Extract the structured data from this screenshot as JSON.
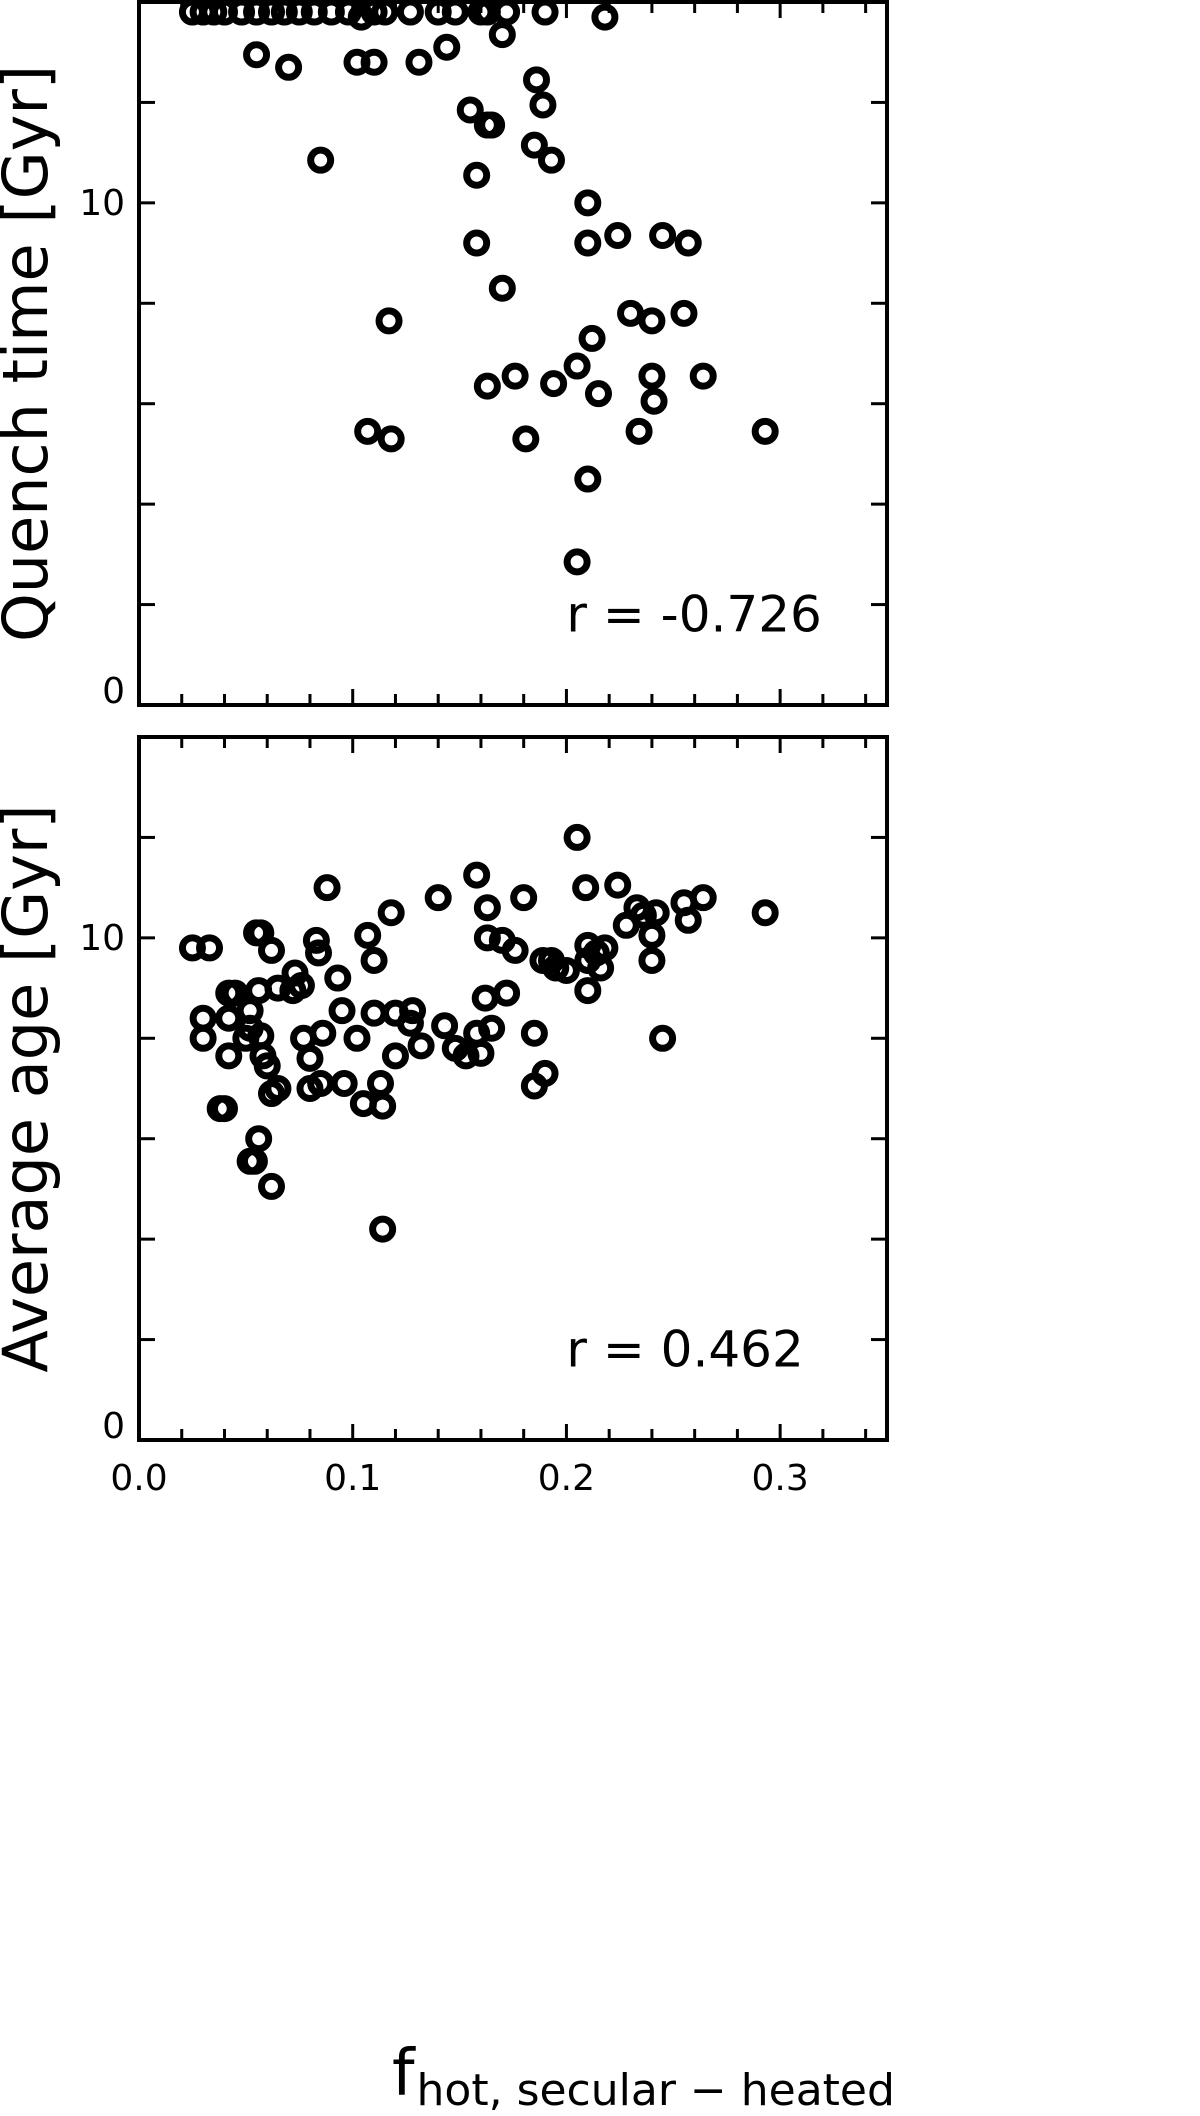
{
  "chart_data": [
    {
      "type": "scatter",
      "ylabel": "Quench time [Gyr]",
      "xlim": [
        0,
        0.35
      ],
      "ylim": [
        0,
        14
      ],
      "y_ticklabels": [
        {
          "value": 0,
          "label": "0"
        },
        {
          "value": 10,
          "label": "10"
        }
      ],
      "y_minor_ticks": [
        2,
        4,
        6,
        8,
        12
      ],
      "x_ticks": [
        0.0,
        0.02,
        0.04,
        0.06,
        0.08,
        0.1,
        0.12,
        0.14,
        0.16,
        0.18,
        0.2,
        0.22,
        0.24,
        0.26,
        0.28,
        0.3,
        0.32,
        0.34
      ],
      "annotation": {
        "text": "r = -0.726",
        "x": 0.2,
        "y": 1.8
      },
      "points": [
        {
          "x": 0.025,
          "y": 13.8
        },
        {
          "x": 0.03,
          "y": 13.8
        },
        {
          "x": 0.035,
          "y": 13.8
        },
        {
          "x": 0.04,
          "y": 13.8
        },
        {
          "x": 0.048,
          "y": 13.8
        },
        {
          "x": 0.055,
          "y": 13.8
        },
        {
          "x": 0.062,
          "y": 13.8
        },
        {
          "x": 0.068,
          "y": 13.8
        },
        {
          "x": 0.075,
          "y": 13.8
        },
        {
          "x": 0.082,
          "y": 13.8
        },
        {
          "x": 0.09,
          "y": 13.8
        },
        {
          "x": 0.098,
          "y": 13.8
        },
        {
          "x": 0.104,
          "y": 13.7
        },
        {
          "x": 0.11,
          "y": 13.8
        },
        {
          "x": 0.115,
          "y": 13.8
        },
        {
          "x": 0.127,
          "y": 13.8
        },
        {
          "x": 0.14,
          "y": 13.8
        },
        {
          "x": 0.148,
          "y": 13.8
        },
        {
          "x": 0.16,
          "y": 13.8
        },
        {
          "x": 0.163,
          "y": 13.8
        },
        {
          "x": 0.172,
          "y": 13.8
        },
        {
          "x": 0.19,
          "y": 13.8
        },
        {
          "x": 0.218,
          "y": 13.7
        },
        {
          "x": 0.17,
          "y": 13.35
        },
        {
          "x": 0.055,
          "y": 12.95
        },
        {
          "x": 0.07,
          "y": 12.7
        },
        {
          "x": 0.102,
          "y": 12.8
        },
        {
          "x": 0.11,
          "y": 12.8
        },
        {
          "x": 0.131,
          "y": 12.8
        },
        {
          "x": 0.144,
          "y": 13.1
        },
        {
          "x": 0.186,
          "y": 12.45
        },
        {
          "x": 0.189,
          "y": 11.95
        },
        {
          "x": 0.155,
          "y": 11.85
        },
        {
          "x": 0.163,
          "y": 11.55
        },
        {
          "x": 0.165,
          "y": 11.55
        },
        {
          "x": 0.185,
          "y": 11.15
        },
        {
          "x": 0.193,
          "y": 10.85
        },
        {
          "x": 0.085,
          "y": 10.85
        },
        {
          "x": 0.158,
          "y": 10.55
        },
        {
          "x": 0.21,
          "y": 10.0
        },
        {
          "x": 0.158,
          "y": 9.2
        },
        {
          "x": 0.21,
          "y": 9.2
        },
        {
          "x": 0.224,
          "y": 9.35
        },
        {
          "x": 0.245,
          "y": 9.35
        },
        {
          "x": 0.257,
          "y": 9.2
        },
        {
          "x": 0.17,
          "y": 8.3
        },
        {
          "x": 0.117,
          "y": 7.65
        },
        {
          "x": 0.23,
          "y": 7.8
        },
        {
          "x": 0.24,
          "y": 7.65
        },
        {
          "x": 0.255,
          "y": 7.8
        },
        {
          "x": 0.212,
          "y": 7.3
        },
        {
          "x": 0.205,
          "y": 6.75
        },
        {
          "x": 0.24,
          "y": 6.55
        },
        {
          "x": 0.264,
          "y": 6.55
        },
        {
          "x": 0.176,
          "y": 6.55
        },
        {
          "x": 0.163,
          "y": 6.35
        },
        {
          "x": 0.194,
          "y": 6.4
        },
        {
          "x": 0.215,
          "y": 6.2
        },
        {
          "x": 0.241,
          "y": 6.05
        },
        {
          "x": 0.107,
          "y": 5.45
        },
        {
          "x": 0.118,
          "y": 5.3
        },
        {
          "x": 0.181,
          "y": 5.3
        },
        {
          "x": 0.234,
          "y": 5.45
        },
        {
          "x": 0.293,
          "y": 5.45
        },
        {
          "x": 0.21,
          "y": 4.5
        },
        {
          "x": 0.205,
          "y": 2.85
        }
      ]
    },
    {
      "type": "scatter",
      "xlabel_main": "f",
      "xlabel_sub": "hot, secular − heated",
      "ylabel": "Average age [Gyr]",
      "xlim": [
        0,
        0.35
      ],
      "ylim": [
        0,
        14
      ],
      "x_ticklabels": [
        {
          "value": 0.0,
          "label": "0.0"
        },
        {
          "value": 0.1,
          "label": "0.1"
        },
        {
          "value": 0.2,
          "label": "0.2"
        },
        {
          "value": 0.3,
          "label": "0.3"
        }
      ],
      "y_ticklabels": [
        {
          "value": 0,
          "label": "0"
        },
        {
          "value": 10,
          "label": "10"
        }
      ],
      "y_minor_ticks": [
        2,
        4,
        6,
        8,
        12
      ],
      "x_ticks": [
        0.0,
        0.02,
        0.04,
        0.06,
        0.08,
        0.1,
        0.12,
        0.14,
        0.16,
        0.18,
        0.2,
        0.22,
        0.24,
        0.26,
        0.28,
        0.3,
        0.32,
        0.34
      ],
      "annotation": {
        "text": "r = 0.462",
        "x": 0.2,
        "y": 1.8
      },
      "points": [
        {
          "x": 0.025,
          "y": 9.8
        },
        {
          "x": 0.033,
          "y": 9.8
        },
        {
          "x": 0.03,
          "y": 8.4
        },
        {
          "x": 0.03,
          "y": 8.0
        },
        {
          "x": 0.042,
          "y": 8.4
        },
        {
          "x": 0.042,
          "y": 8.9
        },
        {
          "x": 0.045,
          "y": 8.9
        },
        {
          "x": 0.042,
          "y": 7.65
        },
        {
          "x": 0.052,
          "y": 8.55
        },
        {
          "x": 0.052,
          "y": 8.2
        },
        {
          "x": 0.05,
          "y": 8.0
        },
        {
          "x": 0.056,
          "y": 8.95
        },
        {
          "x": 0.057,
          "y": 8.05
        },
        {
          "x": 0.058,
          "y": 7.65
        },
        {
          "x": 0.055,
          "y": 10.1
        },
        {
          "x": 0.057,
          "y": 10.1
        },
        {
          "x": 0.062,
          "y": 9.75
        },
        {
          "x": 0.06,
          "y": 7.45
        },
        {
          "x": 0.065,
          "y": 9.0
        },
        {
          "x": 0.072,
          "y": 8.95
        },
        {
          "x": 0.073,
          "y": 9.3
        },
        {
          "x": 0.076,
          "y": 9.05
        },
        {
          "x": 0.077,
          "y": 8.0
        },
        {
          "x": 0.08,
          "y": 7.6
        },
        {
          "x": 0.083,
          "y": 9.95
        },
        {
          "x": 0.084,
          "y": 9.7
        },
        {
          "x": 0.086,
          "y": 8.1
        },
        {
          "x": 0.088,
          "y": 11.0
        },
        {
          "x": 0.085,
          "y": 7.1
        },
        {
          "x": 0.08,
          "y": 7.0
        },
        {
          "x": 0.062,
          "y": 6.9
        },
        {
          "x": 0.065,
          "y": 7.0
        },
        {
          "x": 0.038,
          "y": 6.6
        },
        {
          "x": 0.04,
          "y": 6.6
        },
        {
          "x": 0.056,
          "y": 6.0
        },
        {
          "x": 0.052,
          "y": 5.55
        },
        {
          "x": 0.054,
          "y": 5.55
        },
        {
          "x": 0.062,
          "y": 5.05
        },
        {
          "x": 0.093,
          "y": 9.2
        },
        {
          "x": 0.095,
          "y": 8.55
        },
        {
          "x": 0.096,
          "y": 7.1
        },
        {
          "x": 0.102,
          "y": 8.0
        },
        {
          "x": 0.105,
          "y": 6.7
        },
        {
          "x": 0.107,
          "y": 10.05
        },
        {
          "x": 0.11,
          "y": 9.55
        },
        {
          "x": 0.11,
          "y": 8.5
        },
        {
          "x": 0.113,
          "y": 7.1
        },
        {
          "x": 0.114,
          "y": 6.65
        },
        {
          "x": 0.118,
          "y": 10.5
        },
        {
          "x": 0.12,
          "y": 8.5
        },
        {
          "x": 0.12,
          "y": 7.65
        },
        {
          "x": 0.127,
          "y": 8.3
        },
        {
          "x": 0.128,
          "y": 8.55
        },
        {
          "x": 0.132,
          "y": 7.85
        },
        {
          "x": 0.114,
          "y": 4.2
        },
        {
          "x": 0.14,
          "y": 10.8
        },
        {
          "x": 0.143,
          "y": 8.25
        },
        {
          "x": 0.148,
          "y": 7.8
        },
        {
          "x": 0.153,
          "y": 7.65
        },
        {
          "x": 0.158,
          "y": 11.25
        },
        {
          "x": 0.158,
          "y": 8.1
        },
        {
          "x": 0.16,
          "y": 7.7
        },
        {
          "x": 0.162,
          "y": 8.8
        },
        {
          "x": 0.163,
          "y": 10.6
        },
        {
          "x": 0.163,
          "y": 10.0
        },
        {
          "x": 0.165,
          "y": 8.2
        },
        {
          "x": 0.17,
          "y": 9.95
        },
        {
          "x": 0.172,
          "y": 8.9
        },
        {
          "x": 0.176,
          "y": 9.75
        },
        {
          "x": 0.18,
          "y": 10.8
        },
        {
          "x": 0.185,
          "y": 8.1
        },
        {
          "x": 0.185,
          "y": 7.05
        },
        {
          "x": 0.189,
          "y": 9.55
        },
        {
          "x": 0.19,
          "y": 7.3
        },
        {
          "x": 0.193,
          "y": 9.55
        },
        {
          "x": 0.195,
          "y": 9.4
        },
        {
          "x": 0.2,
          "y": 9.35
        },
        {
          "x": 0.205,
          "y": 12.0
        },
        {
          "x": 0.209,
          "y": 11.0
        },
        {
          "x": 0.21,
          "y": 9.85
        },
        {
          "x": 0.21,
          "y": 9.55
        },
        {
          "x": 0.21,
          "y": 8.95
        },
        {
          "x": 0.214,
          "y": 9.7
        },
        {
          "x": 0.216,
          "y": 9.4
        },
        {
          "x": 0.218,
          "y": 9.8
        },
        {
          "x": 0.224,
          "y": 11.05
        },
        {
          "x": 0.228,
          "y": 10.25
        },
        {
          "x": 0.233,
          "y": 10.6
        },
        {
          "x": 0.236,
          "y": 10.45
        },
        {
          "x": 0.24,
          "y": 10.05
        },
        {
          "x": 0.24,
          "y": 9.55
        },
        {
          "x": 0.242,
          "y": 10.5
        },
        {
          "x": 0.245,
          "y": 8.0
        },
        {
          "x": 0.255,
          "y": 10.7
        },
        {
          "x": 0.257,
          "y": 10.35
        },
        {
          "x": 0.264,
          "y": 10.8
        },
        {
          "x": 0.293,
          "y": 10.5
        }
      ]
    }
  ]
}
